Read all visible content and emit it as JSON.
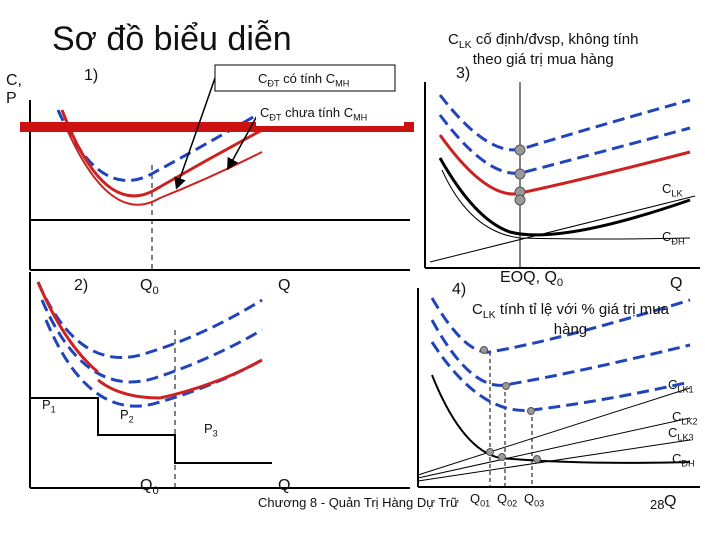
{
  "title": "Sơ đồ biểu diễn",
  "y_axis_label_line1": "C,",
  "y_axis_label_line2": "P",
  "panel1": {
    "number": "1)",
    "label_with_base": "C",
    "label_with_sub": "ĐT",
    "label_with_rest": " có tính C",
    "label_with_sub2": "MH",
    "label_without_base": "C",
    "label_without_sub": "ĐT",
    "label_without_rest": " chưa tính C",
    "label_without_sub2": "MH",
    "x_label_q0": "Q",
    "x_label_q0_sub": "0",
    "x_label_q": "Q"
  },
  "panel2": {
    "number": "2)",
    "p1": "P",
    "p1_sub": "1",
    "p2": "P",
    "p2_sub": "2",
    "p3": "P",
    "p3_sub": "3",
    "x_label_q0": "Q",
    "x_label_q0_sub": "0",
    "x_label_q": "Q"
  },
  "panel3": {
    "number": "3)",
    "note_base": "C",
    "note_sub": "LK",
    "note_line1_rest": " cố định/đvsp, không tính",
    "note_line2": "theo giá trị mua hàng",
    "clk_base": "C",
    "clk_sub": "LK",
    "cdh_base": "C",
    "cdh_sub": "ĐH",
    "x_label_eoq": "EOQ, Q",
    "x_label_eoq_sub": "0",
    "x_label_q": "Q"
  },
  "panel4": {
    "number": "4)",
    "note_base": "C",
    "note_sub": "LK",
    "note_line1_rest": " tính tỉ lệ với % giá trị mua",
    "note_line2": "hàng",
    "clk1_base": "C",
    "clk1_sub": "LK1",
    "clk2_base": "C",
    "clk2_sub": "LK2",
    "clk3_base": "C",
    "clk3_sub": "LK3",
    "cdh_base": "C",
    "cdh_sub": "ĐH",
    "x_q01": "Q",
    "x_q01_sub": "01",
    "x_q02": "Q",
    "x_q02_sub": "02",
    "x_q03": "Q",
    "x_q03_sub": "03",
    "x_label_q": "Q"
  },
  "footer": {
    "text": "Chương 8 - Quản Trị Hàng Dự Trữ",
    "page": "28"
  },
  "colors": {
    "red_bar": "#cc1111",
    "blue_dashed": "#2244bb",
    "red_curve": "#cc2222",
    "black": "#000000",
    "grey_point": "#999999"
  }
}
